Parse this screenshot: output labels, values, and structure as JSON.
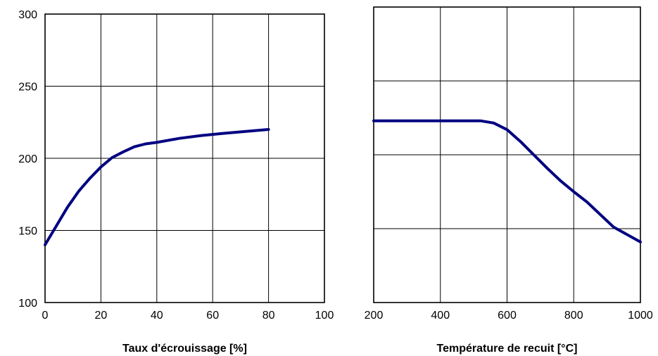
{
  "chart_data": [
    {
      "type": "line",
      "title": "",
      "xlabel": "Taux d'écrouissage [%]",
      "ylabel": "",
      "xlim": [
        0,
        100
      ],
      "ylim": [
        100,
        300
      ],
      "xticks": [
        "0",
        "20",
        "40",
        "60",
        "80",
        "100"
      ],
      "yticks": [
        "100",
        "150",
        "200",
        "250",
        "300"
      ],
      "grid": true,
      "series": [
        {
          "color": "#000080",
          "x": [
            0,
            4,
            8,
            12,
            16,
            20,
            24,
            28,
            32,
            36,
            40,
            48,
            56,
            64,
            72,
            80
          ],
          "y": [
            140,
            153,
            166,
            177,
            186,
            194,
            200.5,
            204.5,
            208,
            210,
            211,
            213.8,
            215.8,
            217.3,
            218.7,
            220
          ]
        }
      ]
    },
    {
      "type": "line",
      "title": "",
      "xlabel": "Température de recuit [°C]",
      "ylabel": "",
      "xlim": [
        200,
        1000
      ],
      "ylim": [
        100,
        300
      ],
      "xticks": [
        "200",
        "400",
        "600",
        "800",
        "1000"
      ],
      "yticks": [],
      "grid": true,
      "series": [
        {
          "color": "#000080",
          "x": [
            200,
            300,
            400,
            520,
            560,
            600,
            640,
            680,
            720,
            760,
            800,
            840,
            880,
            920,
            1000
          ],
          "y": [
            223,
            223,
            223,
            223,
            221.5,
            217,
            209,
            200,
            191,
            182.5,
            175,
            168,
            159.5,
            151,
            141
          ]
        }
      ]
    }
  ]
}
